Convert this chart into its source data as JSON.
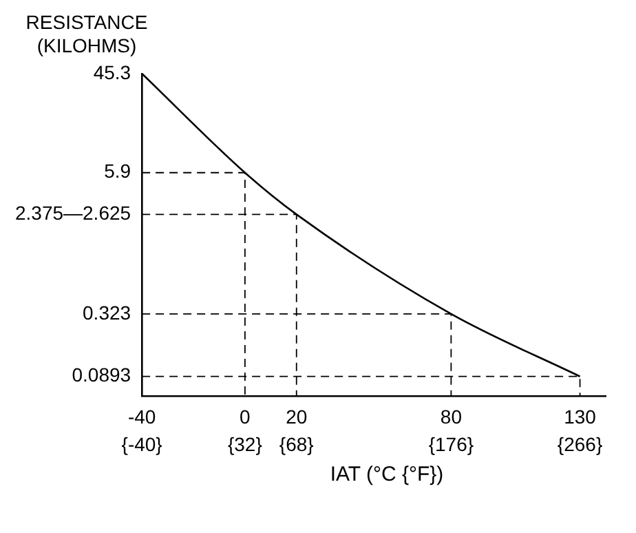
{
  "chart_data": {
    "type": "line",
    "ylabel": "RESISTANCE\n(KILOHMS)",
    "xlabel": "IAT (°C {°F})",
    "x": [
      -40,
      0,
      20,
      80,
      130
    ],
    "series": [
      {
        "color": "#000000",
        "values": [
          45.3,
          5.9,
          2.5,
          0.323,
          0.0893
        ]
      },
      {
        "color": "#000000",
        "line_style": "dashed",
        "x": [
          -40,
          0,
          0
        ],
        "values": [
          5.9,
          5.9,
          0.06
        ]
      },
      {
        "color": "#000000",
        "line_style": "dashed",
        "x": [
          -40,
          20,
          20
        ],
        "values": [
          2.5,
          2.5,
          0.06
        ]
      },
      {
        "color": "#000000",
        "line_style": "dashed",
        "x": [
          -40,
          80,
          80
        ],
        "values": [
          0.323,
          0.323,
          0.06
        ]
      },
      {
        "color": "#000000",
        "line_style": "dashed",
        "x": [
          -40,
          130,
          130
        ],
        "values": [
          0.0893,
          0.0893,
          0.06
        ]
      }
    ],
    "log": "y",
    "xlim": [
      -40,
      140
    ],
    "ylim": [
      0.06,
      45.3
    ],
    "xticks": [
      -40,
      0,
      20,
      80,
      130
    ],
    "x2lim": [
      -40,
      284
    ],
    "x2ticks": [
      {
        "value": -40,
        "label": "{-40}"
      },
      {
        "value": 32,
        "label": "{32}"
      },
      {
        "value": 68,
        "label": "{68}"
      },
      {
        "value": 176,
        "label": "{176}"
      },
      {
        "value": 266,
        "label": "{266}"
      }
    ],
    "yticks": [
      {
        "value": 0.0893,
        "label": "0.0893"
      },
      {
        "value": 0.323,
        "label": "0.323"
      },
      {
        "value": 2.5,
        "label": "2.375—2.625"
      },
      {
        "value": 5.9,
        "label": "5.9"
      },
      {
        "value": 45.3,
        "label": "45.3"
      }
    ],
    "grid": false,
    "legend": false,
    "marker": "none",
    "line_style": "solid"
  }
}
